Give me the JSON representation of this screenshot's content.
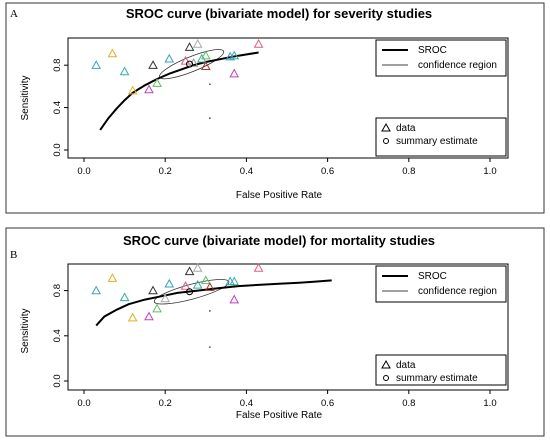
{
  "chart_data": [
    {
      "panel": "A",
      "type": "scatter",
      "title": "SROC curve (bivariate model) for severity studies",
      "xlabel": "False Positive Rate",
      "ylabel": "Sensitivity",
      "xlim": [
        0,
        1
      ],
      "ylim": [
        0,
        1
      ],
      "xticks": [
        "0.0",
        "0.2",
        "0.4",
        "0.6",
        "0.8",
        "1.0"
      ],
      "yticks": [
        "0.0",
        "0.4",
        "0.8"
      ],
      "legend_top": [
        "SROC",
        "confidence region"
      ],
      "legend_bottom": [
        "data",
        "summary estimate"
      ],
      "legend_placement": "top-right / bottom-right",
      "data_points": [
        {
          "x": 0.03,
          "y": 0.8,
          "color": "#3aa0c8"
        },
        {
          "x": 0.07,
          "y": 0.91,
          "color": "#e0b020"
        },
        {
          "x": 0.1,
          "y": 0.74,
          "color": "#30b0a0"
        },
        {
          "x": 0.12,
          "y": 0.56,
          "color": "#e0b020"
        },
        {
          "x": 0.16,
          "y": 0.57,
          "color": "#c040c0"
        },
        {
          "x": 0.17,
          "y": 0.8,
          "color": "#333333"
        },
        {
          "x": 0.18,
          "y": 0.63,
          "color": "#60c060"
        },
        {
          "x": 0.21,
          "y": 0.86,
          "color": "#3aa0c8"
        },
        {
          "x": 0.26,
          "y": 0.97,
          "color": "#333333"
        },
        {
          "x": 0.28,
          "y": 1.0,
          "color": "#aaaaaa"
        },
        {
          "x": 0.25,
          "y": 0.84,
          "color": "#e06080"
        },
        {
          "x": 0.27,
          "y": 0.82,
          "color": "#999999"
        },
        {
          "x": 0.29,
          "y": 0.86,
          "color": "#30b0a0"
        },
        {
          "x": 0.3,
          "y": 0.89,
          "color": "#60c060"
        },
        {
          "x": 0.3,
          "y": 0.79,
          "color": "#b03030"
        },
        {
          "x": 0.36,
          "y": 0.88,
          "color": "#3aa0c8"
        },
        {
          "x": 0.37,
          "y": 0.89,
          "color": "#30b0a0"
        },
        {
          "x": 0.37,
          "y": 0.72,
          "color": "#c040c0"
        },
        {
          "x": 0.43,
          "y": 1.0,
          "color": "#e06080"
        }
      ],
      "small_dots": [
        {
          "x": 0.31,
          "y": 0.62
        },
        {
          "x": 0.31,
          "y": 0.3
        }
      ],
      "sroc_curve": {
        "x": [
          0.04,
          0.06,
          0.08,
          0.1,
          0.12,
          0.15,
          0.18,
          0.21,
          0.24,
          0.27,
          0.3,
          0.34,
          0.38,
          0.43
        ],
        "y": [
          0.19,
          0.3,
          0.39,
          0.47,
          0.54,
          0.61,
          0.67,
          0.72,
          0.76,
          0.8,
          0.83,
          0.86,
          0.89,
          0.92
        ]
      },
      "summary_estimate": {
        "x": 0.26,
        "y": 0.81
      },
      "confidence_region": {
        "cx": 0.265,
        "cy": 0.81,
        "rx": 0.085,
        "ry": 0.07,
        "angle": -22
      }
    },
    {
      "panel": "B",
      "type": "scatter",
      "title": "SROC curve (bivariate model) for mortality studies",
      "xlabel": "False Positive Rate",
      "ylabel": "Sensitivity",
      "xlim": [
        0,
        1
      ],
      "ylim": [
        0,
        1
      ],
      "xticks": [
        "0.0",
        "0.2",
        "0.4",
        "0.6",
        "0.8",
        "1.0"
      ],
      "yticks": [
        "0.0",
        "0.4",
        "0.8"
      ],
      "legend_top": [
        "SROC",
        "confidence region"
      ],
      "legend_bottom": [
        "data",
        "summary estimate"
      ],
      "legend_placement": "top-right / bottom-right",
      "data_points": [
        {
          "x": 0.03,
          "y": 0.8,
          "color": "#3aa0c8"
        },
        {
          "x": 0.07,
          "y": 0.91,
          "color": "#e0b020"
        },
        {
          "x": 0.1,
          "y": 0.74,
          "color": "#30b0a0"
        },
        {
          "x": 0.12,
          "y": 0.56,
          "color": "#e0b020"
        },
        {
          "x": 0.16,
          "y": 0.57,
          "color": "#c040c0"
        },
        {
          "x": 0.17,
          "y": 0.8,
          "color": "#333333"
        },
        {
          "x": 0.18,
          "y": 0.64,
          "color": "#60c060"
        },
        {
          "x": 0.2,
          "y": 0.73,
          "color": "#aaaaaa"
        },
        {
          "x": 0.21,
          "y": 0.86,
          "color": "#3aa0c8"
        },
        {
          "x": 0.26,
          "y": 0.97,
          "color": "#333333"
        },
        {
          "x": 0.28,
          "y": 1.0,
          "color": "#aaaaaa"
        },
        {
          "x": 0.25,
          "y": 0.84,
          "color": "#e06080"
        },
        {
          "x": 0.28,
          "y": 0.85,
          "color": "#30b0a0"
        },
        {
          "x": 0.3,
          "y": 0.89,
          "color": "#60c060"
        },
        {
          "x": 0.31,
          "y": 0.83,
          "color": "#b03030"
        },
        {
          "x": 0.36,
          "y": 0.88,
          "color": "#3aa0c8"
        },
        {
          "x": 0.37,
          "y": 0.88,
          "color": "#30b0a0"
        },
        {
          "x": 0.37,
          "y": 0.72,
          "color": "#c040c0"
        },
        {
          "x": 0.43,
          "y": 1.0,
          "color": "#e06080"
        }
      ],
      "small_dots": [
        {
          "x": 0.31,
          "y": 0.62
        },
        {
          "x": 0.31,
          "y": 0.3
        }
      ],
      "sroc_curve": {
        "x": [
          0.03,
          0.05,
          0.08,
          0.11,
          0.15,
          0.19,
          0.23,
          0.28,
          0.33,
          0.38,
          0.43,
          0.48,
          0.53,
          0.57,
          0.61
        ],
        "y": [
          0.49,
          0.57,
          0.63,
          0.68,
          0.72,
          0.75,
          0.78,
          0.8,
          0.82,
          0.84,
          0.85,
          0.86,
          0.87,
          0.88,
          0.89
        ]
      },
      "summary_estimate": {
        "x": 0.26,
        "y": 0.79
      },
      "confidence_region": {
        "cx": 0.265,
        "cy": 0.79,
        "rx": 0.095,
        "ry": 0.065,
        "angle": -15
      }
    }
  ]
}
